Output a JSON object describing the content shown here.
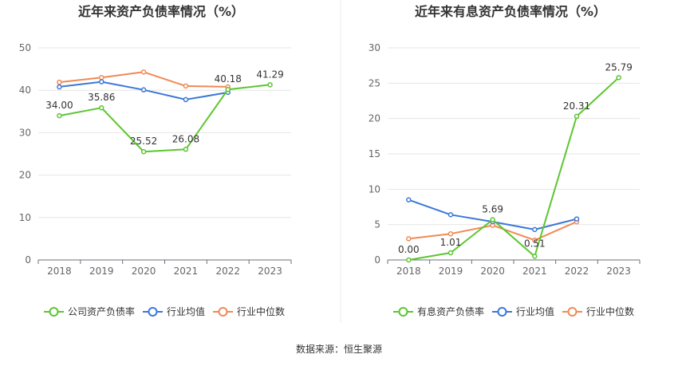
{
  "chart_data": [
    {
      "type": "line",
      "title": "近年来资产负债率情况（%）",
      "categories": [
        "2018",
        "2019",
        "2020",
        "2021",
        "2022",
        "2023"
      ],
      "ylim": [
        0,
        50
      ],
      "yticks": [
        0,
        10,
        20,
        30,
        40,
        50
      ],
      "grid": true,
      "legend_position": "bottom",
      "series": [
        {
          "name": "公司资产负债率",
          "color": "#5CC630",
          "values": [
            34.0,
            35.86,
            25.52,
            26.08,
            40.18,
            41.29
          ],
          "labels": [
            "34.00",
            "35.86",
            "25.52",
            "26.08",
            "40.18",
            "41.29"
          ]
        },
        {
          "name": "行业均值",
          "color": "#3C78D8",
          "values": [
            40.8,
            42.0,
            40.1,
            37.8,
            39.5,
            null
          ]
        },
        {
          "name": "行业中位数",
          "color": "#F08A55",
          "values": [
            41.9,
            43.0,
            44.3,
            41.0,
            40.8,
            null
          ]
        }
      ]
    },
    {
      "type": "line",
      "title": "近年来有息资产负债率情况（%）",
      "categories": [
        "2018",
        "2019",
        "2020",
        "2021",
        "2022",
        "2023"
      ],
      "ylim": [
        0,
        30
      ],
      "yticks": [
        0,
        5,
        10,
        15,
        20,
        25,
        30
      ],
      "grid": true,
      "legend_position": "bottom",
      "series": [
        {
          "name": "有息资产负债率",
          "color": "#5CC630",
          "values": [
            0.0,
            1.01,
            5.69,
            0.51,
            20.31,
            25.79
          ],
          "labels": [
            "0.00",
            "1.01",
            "5.69",
            "0.51",
            "20.31",
            "25.79"
          ]
        },
        {
          "name": "行业均值",
          "color": "#3C78D8",
          "values": [
            8.5,
            6.4,
            5.4,
            4.3,
            5.8,
            null
          ]
        },
        {
          "name": "行业中位数",
          "color": "#F08A55",
          "values": [
            3.0,
            3.7,
            4.9,
            2.8,
            5.4,
            null
          ]
        }
      ]
    }
  ],
  "footer": {
    "source": "数据来源：恒生聚源"
  }
}
